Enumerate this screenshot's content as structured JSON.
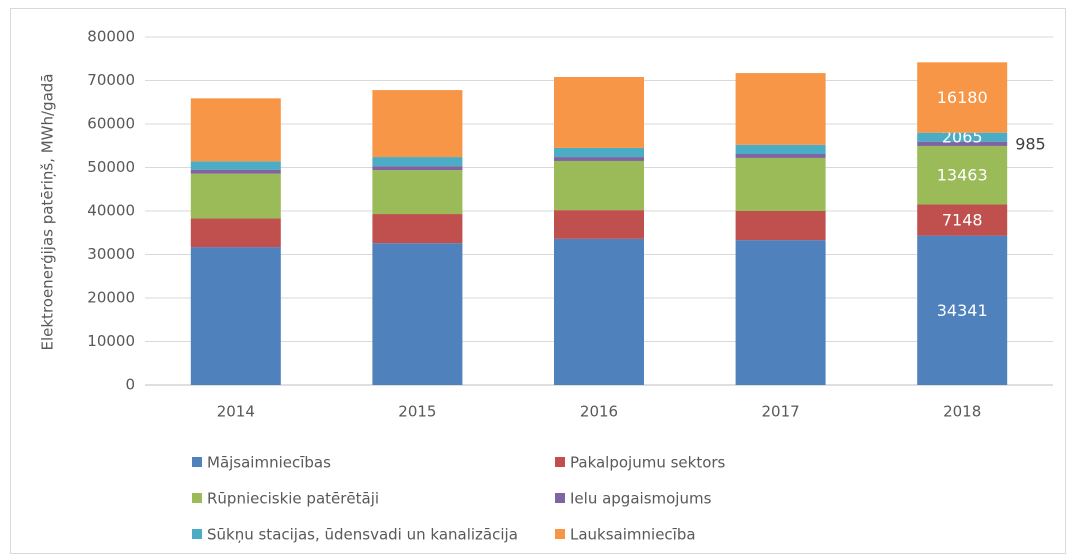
{
  "chart_data": {
    "type": "stacked_bar",
    "y_label": "Elektroenerģijas patēriņš, MWh/gadā",
    "categories": [
      "2014",
      "2015",
      "2016",
      "2017",
      "2018"
    ],
    "series": [
      {
        "name": "Mājsaimniecības",
        "color": "#4f81bd",
        "values": [
          31700,
          32600,
          33600,
          33300,
          34341
        ]
      },
      {
        "name": "Pakalpojumu sektors",
        "color": "#c0504d",
        "values": [
          6600,
          6700,
          6600,
          6700,
          7148
        ]
      },
      {
        "name": "Rūpnieciskie patērētāji",
        "color": "#9bbb59",
        "values": [
          10300,
          10100,
          11300,
          12200,
          13463
        ]
      },
      {
        "name": "Ielu apgaismojums",
        "color": "#8064a2",
        "values": [
          900,
          900,
          900,
          900,
          985
        ]
      },
      {
        "name": "Sūkņu stacijas, ūdensvadi un kanalizācija",
        "color": "#4bacc6",
        "values": [
          1900,
          2100,
          2100,
          2100,
          2065
        ]
      },
      {
        "name": "Lauksaimniecība",
        "color": "#f79646",
        "values": [
          14500,
          15400,
          16300,
          16500,
          16180
        ]
      }
    ],
    "ylim": [
      0,
      80000
    ],
    "yticks": [
      0,
      10000,
      20000,
      30000,
      40000,
      50000,
      60000,
      70000,
      80000
    ],
    "grid": true
  }
}
